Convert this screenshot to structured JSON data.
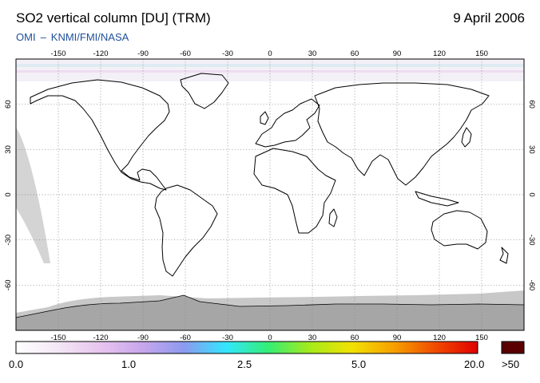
{
  "header": {
    "title": "SO2 vertical column [DU] (TRM)",
    "date": "9 April 2006",
    "credit_left": "OMI",
    "credit_sep": "–",
    "credit_right": "KNMI/FMI/NASA"
  },
  "map": {
    "projection": "equirectangular",
    "lon_ticks": [
      "-150",
      "-120",
      "-90",
      "-60",
      "-30",
      "0",
      "30",
      "60",
      "90",
      "120",
      "150"
    ],
    "lat_ticks": [
      "60",
      "30",
      "0",
      "-30",
      "-60"
    ],
    "grid": "dotted",
    "colors": {
      "no_data": "#d4d4d4",
      "antarctica": "#a6a6a6",
      "coast": "#000000"
    }
  },
  "colorbar": {
    "labels": [
      "0.0",
      "1.0",
      "2.5",
      "5.0",
      "20.0"
    ],
    "overflow_label": ">50",
    "overflow_color": "#5a0000",
    "gradient": [
      "#ffffff",
      "#f4e6f6",
      "#e7c5ee",
      "#c8a6ec",
      "#8c9af0",
      "#33e6ff",
      "#34ee76",
      "#a6ea1a",
      "#f2e203",
      "#f6a000",
      "#f04a00",
      "#e00000"
    ]
  }
}
